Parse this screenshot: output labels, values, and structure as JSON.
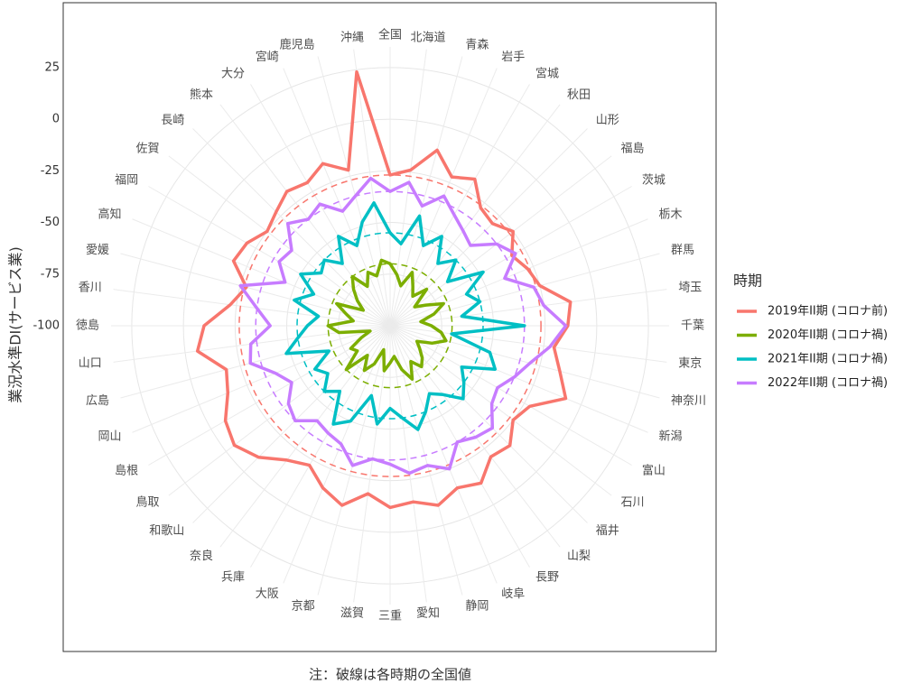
{
  "chart_data": {
    "type": "radar",
    "y_label": "業況水準DI(サービス業)",
    "note": "注：破線は各時期の全国値",
    "legend_title": "時期",
    "legend": "right",
    "grid": true,
    "ylim": [
      -100,
      35
    ],
    "yticks": [
      25,
      0,
      -25,
      -50,
      -75,
      -100
    ],
    "categories": [
      "全国",
      "北海道",
      "青森",
      "岩手",
      "宮城",
      "秋田",
      "山形",
      "福島",
      "茨城",
      "栃木",
      "群馬",
      "埼玉",
      "千葉",
      "東京",
      "神奈川",
      "新潟",
      "富山",
      "石川",
      "福井",
      "山梨",
      "長野",
      "岐阜",
      "静岡",
      "愛知",
      "三重",
      "滋賀",
      "京都",
      "大阪",
      "兵庫",
      "奈良",
      "和歌山",
      "鳥取",
      "島根",
      "岡山",
      "広島",
      "山口",
      "徳島",
      "香川",
      "愛媛",
      "高知",
      "福岡",
      "佐賀",
      "長崎",
      "熊本",
      "大分",
      "宮崎",
      "鹿児島",
      "沖縄"
    ],
    "series": [
      {
        "name": "2019年II期 (コロナ前)",
        "color": "#F8766D",
        "values": [
          -27,
          -24,
          -12,
          -22,
          -18,
          -28,
          -30,
          -25,
          -32,
          -28,
          -25,
          -12,
          -14,
          -20,
          -15,
          -8,
          -22,
          -25,
          -18,
          -20,
          -12,
          -15,
          -10,
          -14,
          -12,
          -18,
          -10,
          -15,
          -22,
          -18,
          -10,
          -5,
          -8,
          -15,
          -18,
          -6,
          -10,
          -22,
          -28,
          -18,
          -20,
          -25,
          -22,
          -18,
          -20,
          -15,
          -22,
          24
        ]
      },
      {
        "name": "2020年II期 (コロナ禍)",
        "color": "#7CAE00",
        "values": [
          -70,
          -75,
          -80,
          -72,
          -78,
          -82,
          -75,
          -85,
          -80,
          -72,
          -78,
          -85,
          -80,
          -75,
          -72,
          -78,
          -85,
          -82,
          -78,
          -75,
          -80,
          -72,
          -78,
          -85,
          -82,
          -78,
          -88,
          -80,
          -75,
          -82,
          -70,
          -80,
          -78,
          -85,
          -90,
          -75,
          -70,
          -82,
          -78,
          -72,
          -85,
          -80,
          -75,
          -70,
          -78,
          -72,
          -75,
          -68
        ]
      },
      {
        "name": "2021年II期 (コロナ禍)",
        "color": "#00BFC4",
        "values": [
          -55,
          -60,
          -45,
          -58,
          -50,
          -62,
          -55,
          -65,
          -48,
          -60,
          -55,
          -65,
          -35,
          -70,
          -50,
          -45,
          -60,
          -55,
          -50,
          -58,
          -62,
          -55,
          -48,
          -55,
          -60,
          -52,
          -65,
          -50,
          -45,
          -60,
          -55,
          -62,
          -58,
          -68,
          -48,
          -55,
          -60,
          -65,
          -52,
          -60,
          -50,
          -58,
          -55,
          -62,
          -50,
          -58,
          -48,
          -40
        ]
      },
      {
        "name": "2022年II期 (コロナ禍)",
        "color": "#C77CFF",
        "values": [
          -35,
          -30,
          -40,
          -32,
          -38,
          -42,
          -45,
          -35,
          -30,
          -40,
          -28,
          -25,
          -15,
          -22,
          -30,
          -35,
          -40,
          -38,
          -30,
          -32,
          -35,
          -25,
          -30,
          -28,
          -33,
          -35,
          -30,
          -38,
          -40,
          -42,
          -35,
          -38,
          -45,
          -40,
          -30,
          -32,
          -42,
          -35,
          -25,
          -45,
          -38,
          -40,
          -30,
          -35,
          -32,
          -40,
          -35,
          -28
        ]
      }
    ]
  }
}
